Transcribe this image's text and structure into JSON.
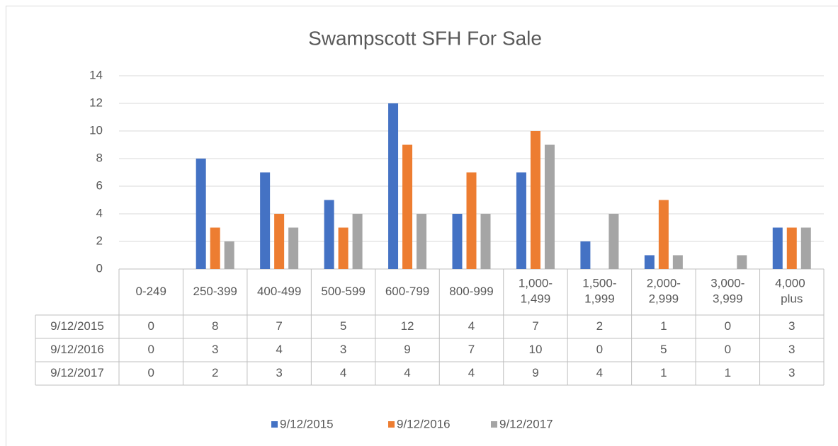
{
  "chart_data": {
    "type": "bar",
    "title": "Swampscott SFH For Sale",
    "categories": [
      "0-249",
      "250-399",
      "400-499",
      "500-599",
      "600-799",
      "800-999",
      "1,000-1,499",
      "1,500-1,999",
      "2,000-2,999",
      "3,000-3,999",
      "4,000 plus"
    ],
    "series": [
      {
        "name": "9/12/2015",
        "color": "#4472c4",
        "values": [
          0,
          8,
          7,
          5,
          12,
          4,
          7,
          2,
          1,
          0,
          3
        ]
      },
      {
        "name": "9/12/2016",
        "color": "#ed7d31",
        "values": [
          0,
          3,
          4,
          3,
          9,
          7,
          10,
          0,
          5,
          0,
          3
        ]
      },
      {
        "name": "9/12/2017",
        "color": "#a5a5a5",
        "values": [
          0,
          2,
          3,
          4,
          4,
          4,
          9,
          4,
          1,
          1,
          3
        ]
      }
    ],
    "ylim": [
      0,
      14
    ],
    "yticks": [
      0,
      2,
      4,
      6,
      8,
      10,
      12,
      14
    ],
    "grid": true,
    "legend": "bottom"
  }
}
